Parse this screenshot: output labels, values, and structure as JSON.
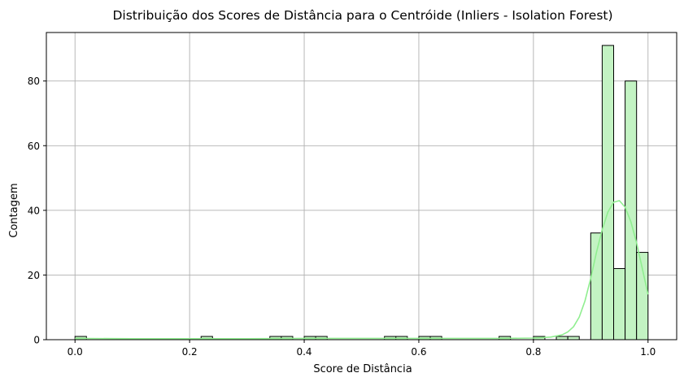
{
  "chart_data": {
    "type": "bar",
    "subtype": "histogram-with-kde",
    "title": "Distribuição dos Scores de Distância para o Centróide (Inliers - Isolation Forest)",
    "xlabel": "Score de Distância",
    "ylabel": "Contagem",
    "xlim": [
      -0.05,
      1.05
    ],
    "ylim": [
      0,
      95
    ],
    "grid": true,
    "bar_color": "#c3f3c3",
    "edge_color": "#000000",
    "kde_color": "#90ee90",
    "x_ticks": [
      "0.0",
      "0.2",
      "0.4",
      "0.6",
      "0.8",
      "1.0"
    ],
    "x_tick_values": [
      0.0,
      0.2,
      0.4,
      0.6,
      0.8,
      1.0
    ],
    "y_ticks": [
      "0",
      "20",
      "40",
      "60",
      "80"
    ],
    "y_tick_values": [
      0,
      20,
      40,
      60,
      80
    ],
    "bins": [
      {
        "x0": 0.0,
        "x1": 0.02,
        "count": 1
      },
      {
        "x0": 0.22,
        "x1": 0.24,
        "count": 1
      },
      {
        "x0": 0.34,
        "x1": 0.36,
        "count": 1
      },
      {
        "x0": 0.36,
        "x1": 0.38,
        "count": 1
      },
      {
        "x0": 0.4,
        "x1": 0.42,
        "count": 1
      },
      {
        "x0": 0.42,
        "x1": 0.44,
        "count": 1
      },
      {
        "x0": 0.54,
        "x1": 0.56,
        "count": 1
      },
      {
        "x0": 0.56,
        "x1": 0.58,
        "count": 1
      },
      {
        "x0": 0.6,
        "x1": 0.62,
        "count": 1
      },
      {
        "x0": 0.62,
        "x1": 0.64,
        "count": 1
      },
      {
        "x0": 0.74,
        "x1": 0.76,
        "count": 1
      },
      {
        "x0": 0.8,
        "x1": 0.82,
        "count": 1
      },
      {
        "x0": 0.84,
        "x1": 0.86,
        "count": 1
      },
      {
        "x0": 0.86,
        "x1": 0.88,
        "count": 1
      },
      {
        "x0": 0.9,
        "x1": 0.92,
        "count": 33
      },
      {
        "x0": 0.92,
        "x1": 0.94,
        "count": 91
      },
      {
        "x0": 0.94,
        "x1": 0.96,
        "count": 22
      },
      {
        "x0": 0.96,
        "x1": 0.98,
        "count": 80
      },
      {
        "x0": 0.98,
        "x1": 1.0,
        "count": 27
      }
    ],
    "kde": {
      "x": [
        0.0,
        0.1,
        0.2,
        0.3,
        0.4,
        0.5,
        0.6,
        0.7,
        0.75,
        0.8,
        0.83,
        0.85,
        0.86,
        0.87,
        0.88,
        0.89,
        0.9,
        0.91,
        0.92,
        0.93,
        0.94,
        0.95,
        0.96,
        0.97,
        0.98,
        0.99,
        1.0
      ],
      "y": [
        0.4,
        0.3,
        0.3,
        0.3,
        0.4,
        0.4,
        0.4,
        0.4,
        0.4,
        0.5,
        0.8,
        1.5,
        2.4,
        4.0,
        7.0,
        12.0,
        19.0,
        27.0,
        34.0,
        39.5,
        42.5,
        43.0,
        41.0,
        36.5,
        30.0,
        22.0,
        14.0
      ]
    }
  }
}
